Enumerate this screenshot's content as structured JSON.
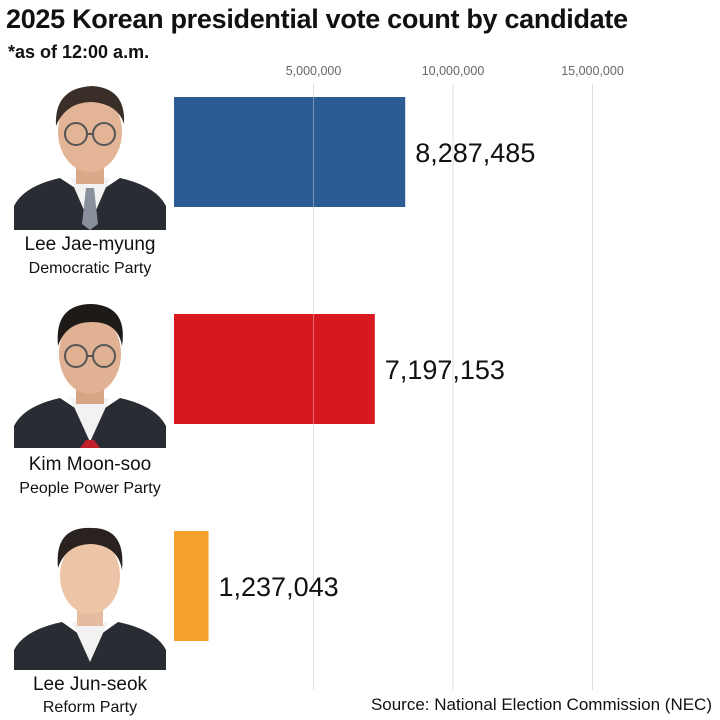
{
  "title": "2025 Korean presidential vote count by candidate",
  "subtitle": "*as of 12:00 a.m.",
  "source": "Source: National Election Commission (NEC)",
  "candidates": [
    {
      "name": "Lee Jae-myung",
      "party": "Democratic Party",
      "photo_icon": "candidate-photo-icon"
    },
    {
      "name": "Kim Moon-soo",
      "party": "People Power Party",
      "photo_icon": "candidate-photo-icon"
    },
    {
      "name": "Lee Jun-seok",
      "party": "Reform Party",
      "photo_icon": "candidate-photo-icon"
    }
  ],
  "chart_data": {
    "type": "bar",
    "orientation": "horizontal",
    "title": "2025 Korean presidential vote count by candidate",
    "subtitle": "*as of 12:00 a.m.",
    "categories": [
      "Lee Jae-myung",
      "Kim Moon-soo",
      "Lee Jun-seok"
    ],
    "values": [
      8287485,
      7197153,
      1237043
    ],
    "value_labels": [
      "8,287,485",
      "7,197,153",
      "1,237,043"
    ],
    "colors": [
      "#2b5c94",
      "#d7191f",
      "#f5a02c"
    ],
    "xticks": [
      5000000,
      10000000,
      15000000
    ],
    "xtick_labels": [
      "5,000,000",
      "10,000,000",
      "15,000,000"
    ],
    "xlim": [
      0,
      17500000
    ],
    "grid": true,
    "xaxis_position": "top"
  }
}
